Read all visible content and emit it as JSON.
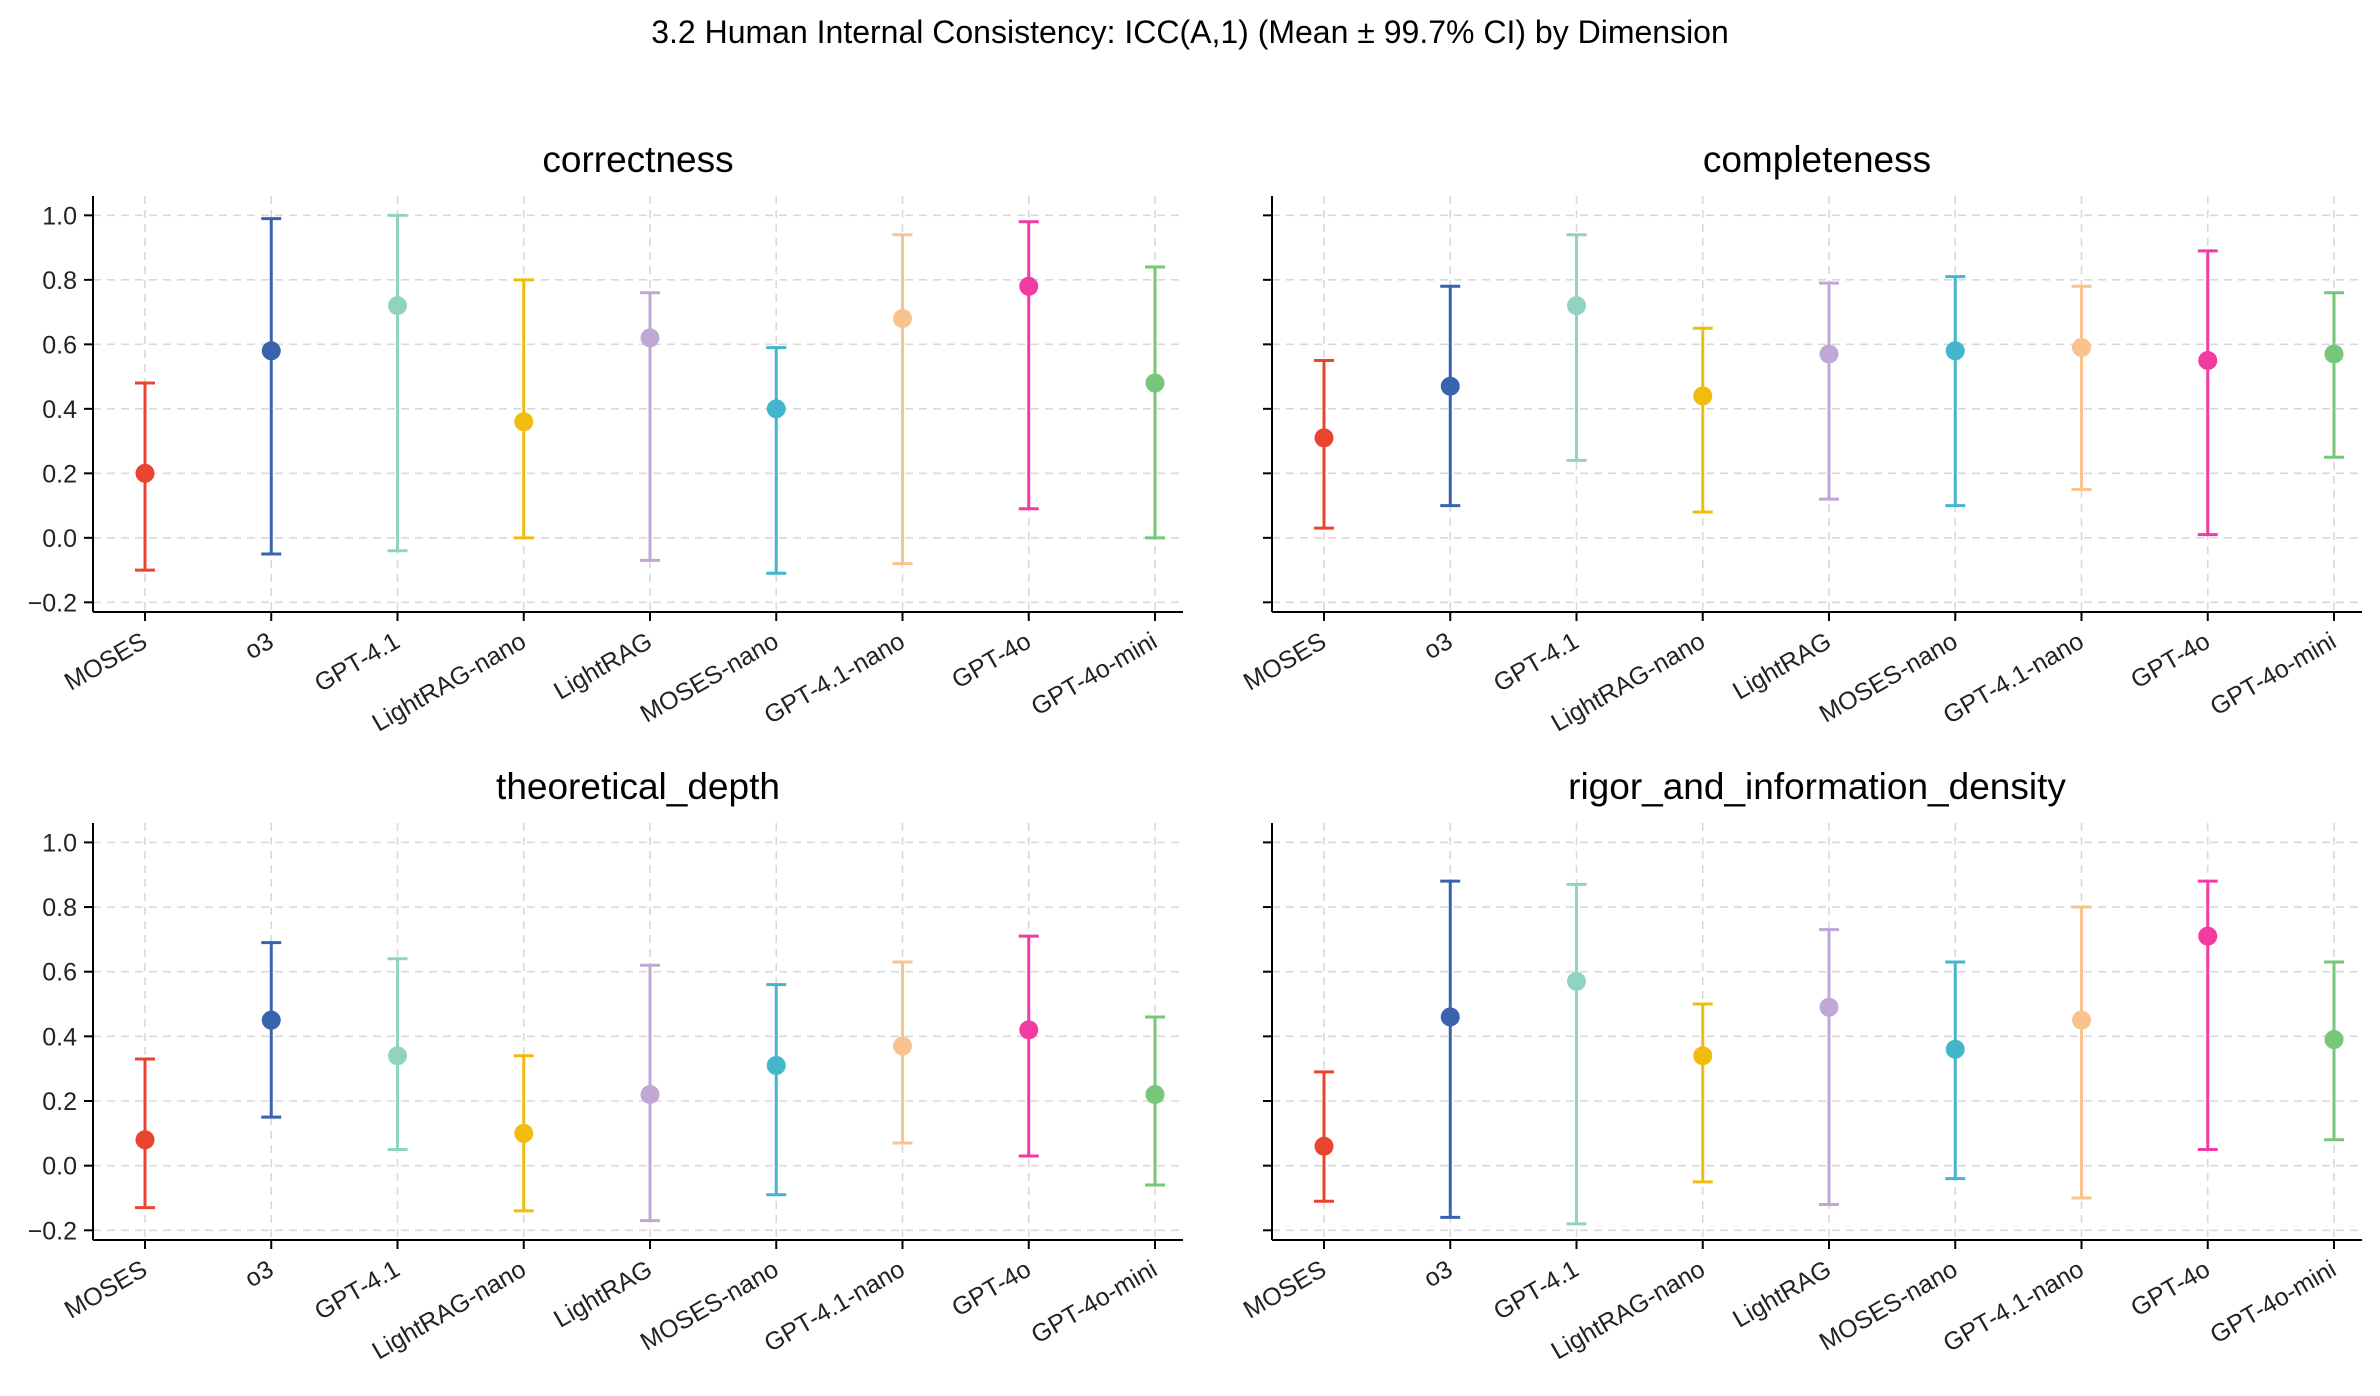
{
  "chart_data": {
    "type": "errorbar",
    "title": "3.2 Human Internal Consistency: ICC(A,1) (Mean ± 99.7% CI) by Dimension",
    "categories": [
      "MOSES",
      "o3",
      "GPT-4.1",
      "LightRAG-nano",
      "LightRAG",
      "MOSES-nano",
      "GPT-4.1-nano",
      "GPT-4o",
      "GPT-4o-mini"
    ],
    "colors": [
      "#e8442f",
      "#3a63ad",
      "#8fd3c0",
      "#f2bc0f",
      "#bfa8d3",
      "#43b6cb",
      "#f8c38e",
      "#f23ba2",
      "#76c77a"
    ],
    "ylim": [
      -0.23,
      1.06
    ],
    "yticks": [
      "1.0",
      "0.8",
      "0.6",
      "0.4",
      "0.2",
      "0.0",
      "−0.2"
    ],
    "ytick_values": [
      1.0,
      0.8,
      0.6,
      0.4,
      0.2,
      0.0,
      -0.2
    ],
    "grid": true,
    "sharey": true,
    "panels": [
      {
        "title": "correctness",
        "mean": [
          0.2,
          0.58,
          0.72,
          0.36,
          0.62,
          0.4,
          0.68,
          0.78,
          0.48
        ],
        "lower": [
          -0.1,
          -0.05,
          -0.04,
          0.0,
          -0.07,
          -0.11,
          -0.08,
          0.09,
          0.0
        ],
        "upper": [
          0.48,
          0.99,
          1.0,
          0.8,
          0.76,
          0.59,
          0.94,
          0.98,
          0.84
        ]
      },
      {
        "title": "completeness",
        "mean": [
          0.31,
          0.47,
          0.72,
          0.44,
          0.57,
          0.58,
          0.59,
          0.55,
          0.57
        ],
        "lower": [
          0.03,
          0.1,
          0.24,
          0.08,
          0.12,
          0.1,
          0.15,
          0.01,
          0.25
        ],
        "upper": [
          0.55,
          0.78,
          0.94,
          0.65,
          0.79,
          0.81,
          0.78,
          0.89,
          0.76
        ]
      },
      {
        "title": "theoretical_depth",
        "mean": [
          0.08,
          0.45,
          0.34,
          0.1,
          0.22,
          0.31,
          0.37,
          0.42,
          0.22
        ],
        "lower": [
          -0.13,
          0.15,
          0.05,
          -0.14,
          -0.17,
          -0.09,
          0.07,
          0.03,
          -0.06
        ],
        "upper": [
          0.33,
          0.69,
          0.64,
          0.34,
          0.62,
          0.56,
          0.63,
          0.71,
          0.46
        ]
      },
      {
        "title": "rigor_and_information_density",
        "mean": [
          0.06,
          0.46,
          0.57,
          0.34,
          0.49,
          0.36,
          0.45,
          0.71,
          0.39
        ],
        "lower": [
          -0.11,
          -0.16,
          -0.18,
          -0.05,
          -0.12,
          -0.04,
          -0.1,
          0.05,
          0.08
        ],
        "upper": [
          0.29,
          0.88,
          0.87,
          0.5,
          0.73,
          0.63,
          0.8,
          0.88,
          0.63
        ]
      }
    ]
  }
}
